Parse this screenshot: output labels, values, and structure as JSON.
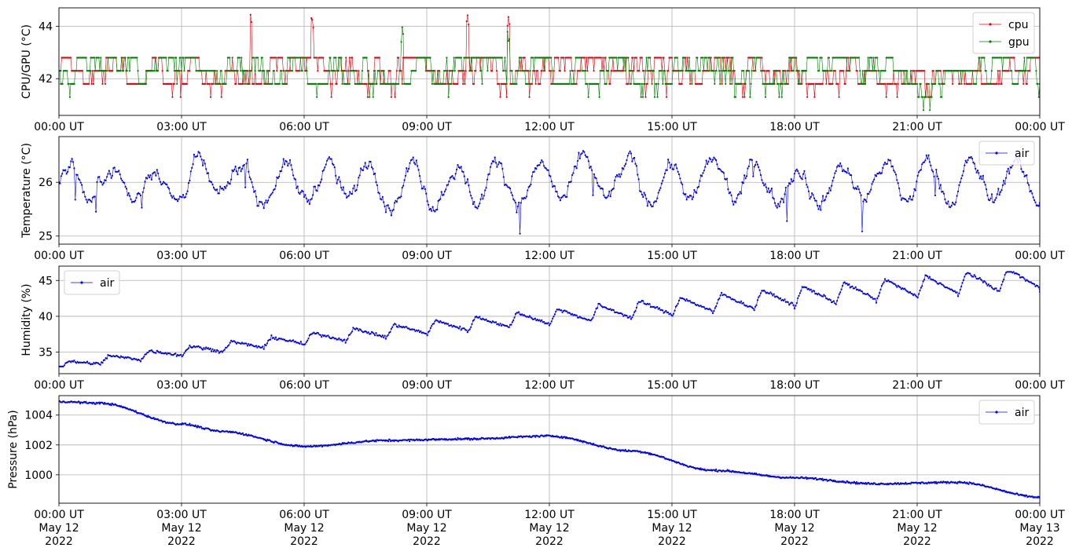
{
  "colors": {
    "cpu": "#e8000b",
    "gpu": "#008000",
    "air": "#0000ff",
    "grid": "#b0b0b0",
    "frame": "#000000"
  },
  "x_ticks": [
    "00:00 UT",
    "03:00 UT",
    "06:00 UT",
    "09:00 UT",
    "12:00 UT",
    "15:00 UT",
    "18:00 UT",
    "21:00 UT",
    "00:00 UT"
  ],
  "x_dates": [
    "May 12",
    "May 12",
    "May 12",
    "May 12",
    "May 12",
    "May 12",
    "May 12",
    "May 12",
    "May 13"
  ],
  "x_years": [
    "2022",
    "2022",
    "2022",
    "2022",
    "2022",
    "2022",
    "2022",
    "2022",
    "2022"
  ],
  "chart_data": [
    {
      "type": "line",
      "ylabel": "CPU/GPU (°C)",
      "xlim": [
        "2022-05-12 00:00",
        "2022-05-13 00:00"
      ],
      "ylim": [
        40.6,
        44.7
      ],
      "yticks": [
        42,
        44
      ],
      "grid": true,
      "legend": "top-right",
      "series": [
        {
          "name": "cpu",
          "color": "#e8000b",
          "model": {
            "base": 42.1,
            "step": 0.5,
            "levels": [
              41.8,
              42.3,
              42.8
            ],
            "min": 40.7,
            "max": 44.5
          }
        },
        {
          "name": "gpu",
          "color": "#008000",
          "model": {
            "base": 42.2,
            "step": 0.5,
            "levels": [
              41.8,
              42.3,
              42.8
            ],
            "min": 40.8,
            "max": 44.0
          }
        }
      ]
    },
    {
      "type": "line",
      "ylabel": "Temperature (°C)",
      "xlim": [
        "2022-05-12 00:00",
        "2022-05-13 00:00"
      ],
      "ylim": [
        24.85,
        26.85
      ],
      "yticks": [
        25,
        26
      ],
      "grid": true,
      "legend": "top-right",
      "series": [
        {
          "name": "air",
          "color": "#0000ff",
          "model": {
            "mean": 26.0,
            "amplitude": 0.35,
            "noise": 0.2,
            "min": 24.9,
            "max": 26.8
          }
        }
      ]
    },
    {
      "type": "line",
      "ylabel": "Humidity (%)",
      "xlim": [
        "2022-05-12 00:00",
        "2022-05-13 00:00"
      ],
      "ylim": [
        32,
        47
      ],
      "yticks": [
        35,
        40,
        45
      ],
      "grid": true,
      "legend": "top-left",
      "series": [
        {
          "name": "air",
          "color": "#0000ff",
          "model": {
            "start": 33.0,
            "end": 45.5,
            "amplitude_start": 0.8,
            "amplitude_end": 2.8,
            "period_hours": 1.0,
            "min": 33.0,
            "max": 46.2
          }
        }
      ]
    },
    {
      "type": "line",
      "ylabel": "Pressure (hPa)",
      "xlim": [
        "2022-05-12 00:00",
        "2022-05-13 00:00"
      ],
      "ylim": [
        998.1,
        1005.3
      ],
      "yticks": [
        1000,
        1002,
        1004
      ],
      "grid": true,
      "legend": "top-right",
      "series": [
        {
          "name": "air",
          "color": "#0000ff",
          "model": {
            "keypoints": [
              [
                0,
                1004.9
              ],
              [
                1,
                1004.8
              ],
              [
                3,
                1003.4
              ],
              [
                4,
                1002.9
              ],
              [
                6,
                1001.9
              ],
              [
                8,
                1002.3
              ],
              [
                10,
                1002.4
              ],
              [
                12,
                1002.6
              ],
              [
                14,
                1001.6
              ],
              [
                16,
                1000.3
              ],
              [
                18,
                999.8
              ],
              [
                20,
                999.4
              ],
              [
                22,
                999.5
              ],
              [
                24,
                998.5
              ]
            ]
          }
        }
      ]
    }
  ]
}
